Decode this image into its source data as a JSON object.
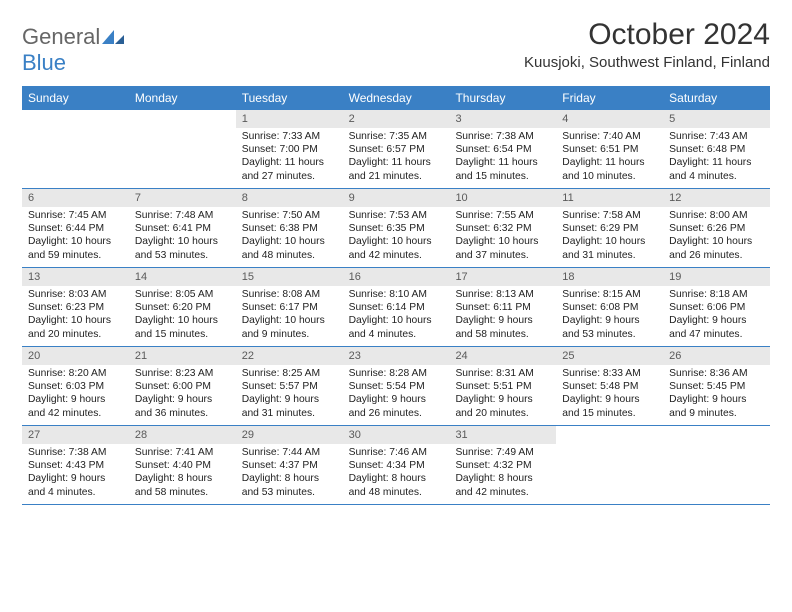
{
  "brand": {
    "word1": "General",
    "word2": "Blue"
  },
  "title": "October 2024",
  "location": "Kuusjoki, Southwest Finland, Finland",
  "colors": {
    "accent": "#3a80c5",
    "header_bg": "#e8e8e8",
    "text": "#222222",
    "muted": "#666666"
  },
  "day_headers": [
    "Sunday",
    "Monday",
    "Tuesday",
    "Wednesday",
    "Thursday",
    "Friday",
    "Saturday"
  ],
  "weeks": [
    [
      {
        "n": "",
        "sunrise": "",
        "sunset": "",
        "daylight": ""
      },
      {
        "n": "",
        "sunrise": "",
        "sunset": "",
        "daylight": ""
      },
      {
        "n": "1",
        "sunrise": "Sunrise: 7:33 AM",
        "sunset": "Sunset: 7:00 PM",
        "daylight": "Daylight: 11 hours and 27 minutes."
      },
      {
        "n": "2",
        "sunrise": "Sunrise: 7:35 AM",
        "sunset": "Sunset: 6:57 PM",
        "daylight": "Daylight: 11 hours and 21 minutes."
      },
      {
        "n": "3",
        "sunrise": "Sunrise: 7:38 AM",
        "sunset": "Sunset: 6:54 PM",
        "daylight": "Daylight: 11 hours and 15 minutes."
      },
      {
        "n": "4",
        "sunrise": "Sunrise: 7:40 AM",
        "sunset": "Sunset: 6:51 PM",
        "daylight": "Daylight: 11 hours and 10 minutes."
      },
      {
        "n": "5",
        "sunrise": "Sunrise: 7:43 AM",
        "sunset": "Sunset: 6:48 PM",
        "daylight": "Daylight: 11 hours and 4 minutes."
      }
    ],
    [
      {
        "n": "6",
        "sunrise": "Sunrise: 7:45 AM",
        "sunset": "Sunset: 6:44 PM",
        "daylight": "Daylight: 10 hours and 59 minutes."
      },
      {
        "n": "7",
        "sunrise": "Sunrise: 7:48 AM",
        "sunset": "Sunset: 6:41 PM",
        "daylight": "Daylight: 10 hours and 53 minutes."
      },
      {
        "n": "8",
        "sunrise": "Sunrise: 7:50 AM",
        "sunset": "Sunset: 6:38 PM",
        "daylight": "Daylight: 10 hours and 48 minutes."
      },
      {
        "n": "9",
        "sunrise": "Sunrise: 7:53 AM",
        "sunset": "Sunset: 6:35 PM",
        "daylight": "Daylight: 10 hours and 42 minutes."
      },
      {
        "n": "10",
        "sunrise": "Sunrise: 7:55 AM",
        "sunset": "Sunset: 6:32 PM",
        "daylight": "Daylight: 10 hours and 37 minutes."
      },
      {
        "n": "11",
        "sunrise": "Sunrise: 7:58 AM",
        "sunset": "Sunset: 6:29 PM",
        "daylight": "Daylight: 10 hours and 31 minutes."
      },
      {
        "n": "12",
        "sunrise": "Sunrise: 8:00 AM",
        "sunset": "Sunset: 6:26 PM",
        "daylight": "Daylight: 10 hours and 26 minutes."
      }
    ],
    [
      {
        "n": "13",
        "sunrise": "Sunrise: 8:03 AM",
        "sunset": "Sunset: 6:23 PM",
        "daylight": "Daylight: 10 hours and 20 minutes."
      },
      {
        "n": "14",
        "sunrise": "Sunrise: 8:05 AM",
        "sunset": "Sunset: 6:20 PM",
        "daylight": "Daylight: 10 hours and 15 minutes."
      },
      {
        "n": "15",
        "sunrise": "Sunrise: 8:08 AM",
        "sunset": "Sunset: 6:17 PM",
        "daylight": "Daylight: 10 hours and 9 minutes."
      },
      {
        "n": "16",
        "sunrise": "Sunrise: 8:10 AM",
        "sunset": "Sunset: 6:14 PM",
        "daylight": "Daylight: 10 hours and 4 minutes."
      },
      {
        "n": "17",
        "sunrise": "Sunrise: 8:13 AM",
        "sunset": "Sunset: 6:11 PM",
        "daylight": "Daylight: 9 hours and 58 minutes."
      },
      {
        "n": "18",
        "sunrise": "Sunrise: 8:15 AM",
        "sunset": "Sunset: 6:08 PM",
        "daylight": "Daylight: 9 hours and 53 minutes."
      },
      {
        "n": "19",
        "sunrise": "Sunrise: 8:18 AM",
        "sunset": "Sunset: 6:06 PM",
        "daylight": "Daylight: 9 hours and 47 minutes."
      }
    ],
    [
      {
        "n": "20",
        "sunrise": "Sunrise: 8:20 AM",
        "sunset": "Sunset: 6:03 PM",
        "daylight": "Daylight: 9 hours and 42 minutes."
      },
      {
        "n": "21",
        "sunrise": "Sunrise: 8:23 AM",
        "sunset": "Sunset: 6:00 PM",
        "daylight": "Daylight: 9 hours and 36 minutes."
      },
      {
        "n": "22",
        "sunrise": "Sunrise: 8:25 AM",
        "sunset": "Sunset: 5:57 PM",
        "daylight": "Daylight: 9 hours and 31 minutes."
      },
      {
        "n": "23",
        "sunrise": "Sunrise: 8:28 AM",
        "sunset": "Sunset: 5:54 PM",
        "daylight": "Daylight: 9 hours and 26 minutes."
      },
      {
        "n": "24",
        "sunrise": "Sunrise: 8:31 AM",
        "sunset": "Sunset: 5:51 PM",
        "daylight": "Daylight: 9 hours and 20 minutes."
      },
      {
        "n": "25",
        "sunrise": "Sunrise: 8:33 AM",
        "sunset": "Sunset: 5:48 PM",
        "daylight": "Daylight: 9 hours and 15 minutes."
      },
      {
        "n": "26",
        "sunrise": "Sunrise: 8:36 AM",
        "sunset": "Sunset: 5:45 PM",
        "daylight": "Daylight: 9 hours and 9 minutes."
      }
    ],
    [
      {
        "n": "27",
        "sunrise": "Sunrise: 7:38 AM",
        "sunset": "Sunset: 4:43 PM",
        "daylight": "Daylight: 9 hours and 4 minutes."
      },
      {
        "n": "28",
        "sunrise": "Sunrise: 7:41 AM",
        "sunset": "Sunset: 4:40 PM",
        "daylight": "Daylight: 8 hours and 58 minutes."
      },
      {
        "n": "29",
        "sunrise": "Sunrise: 7:44 AM",
        "sunset": "Sunset: 4:37 PM",
        "daylight": "Daylight: 8 hours and 53 minutes."
      },
      {
        "n": "30",
        "sunrise": "Sunrise: 7:46 AM",
        "sunset": "Sunset: 4:34 PM",
        "daylight": "Daylight: 8 hours and 48 minutes."
      },
      {
        "n": "31",
        "sunrise": "Sunrise: 7:49 AM",
        "sunset": "Sunset: 4:32 PM",
        "daylight": "Daylight: 8 hours and 42 minutes."
      },
      {
        "n": "",
        "sunrise": "",
        "sunset": "",
        "daylight": ""
      },
      {
        "n": "",
        "sunrise": "",
        "sunset": "",
        "daylight": ""
      }
    ]
  ]
}
